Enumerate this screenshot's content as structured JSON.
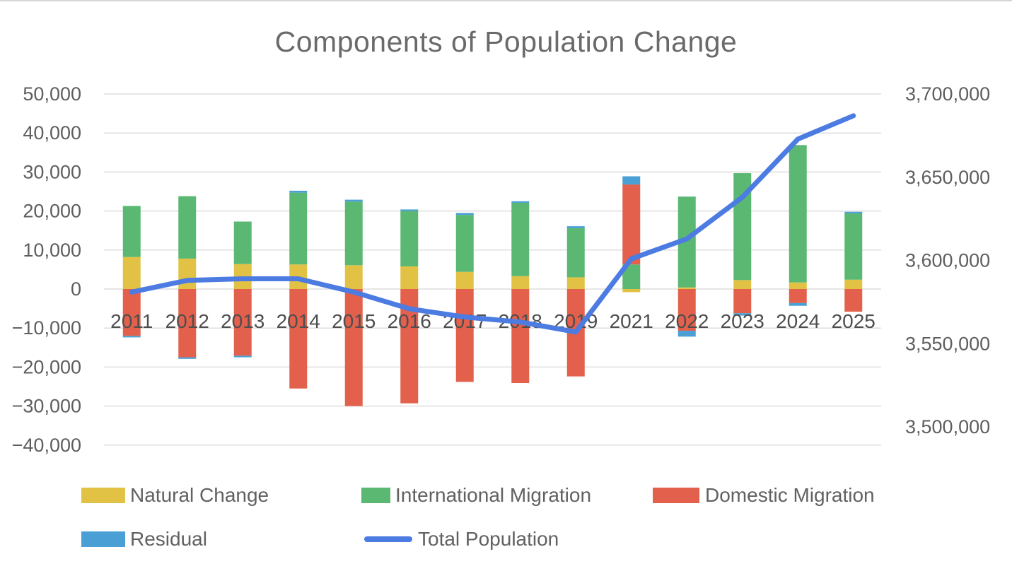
{
  "title": "Components of Population Change",
  "legend": {
    "items": [
      {
        "label": "Natural Change",
        "color": "#E2C244",
        "type": "box"
      },
      {
        "label": "International Migration",
        "color": "#5BB873",
        "type": "box"
      },
      {
        "label": "Domestic Migration",
        "color": "#E2604C",
        "type": "box"
      },
      {
        "label": "Residual",
        "color": "#4AA0D5",
        "type": "box"
      },
      {
        "label": "Total Population",
        "color": "#4C7BE2",
        "type": "line"
      }
    ]
  },
  "chart_data": {
    "type": "combo-stacked-bar-line",
    "title": "Components of Population Change",
    "categories": [
      "2011",
      "2012",
      "2013",
      "2014",
      "2015",
      "2016",
      "2017",
      "2018",
      "2019",
      "2021",
      "2022",
      "2023",
      "2024",
      "2025"
    ],
    "bar_series": [
      {
        "name": "Natural Change",
        "color": "#E2C244",
        "values": [
          8200,
          7800,
          6400,
          6300,
          6100,
          5800,
          4400,
          3300,
          3000,
          -800,
          400,
          2300,
          1700,
          2400
        ]
      },
      {
        "name": "International Migration",
        "color": "#5BB873",
        "values": [
          13100,
          16000,
          10900,
          18400,
          16300,
          14200,
          14600,
          18800,
          12600,
          6300,
          23300,
          27400,
          35200,
          17000
        ]
      },
      {
        "name": "Domestic Migration",
        "color": "#E2604C",
        "values": [
          -12000,
          -17500,
          -17100,
          -25500,
          -30000,
          -29300,
          -23800,
          -24100,
          -22400,
          20500,
          -10700,
          -6200,
          -3600,
          -5800
        ]
      },
      {
        "name": "Residual",
        "color": "#4AA0D5",
        "values": [
          -400,
          -400,
          -400,
          500,
          500,
          400,
          500,
          400,
          500,
          2100,
          -1500,
          -600,
          -700,
          400
        ]
      }
    ],
    "line_series": {
      "name": "Total Population",
      "color": "#4C7BE2",
      "axis": "right",
      "values": [
        3581000,
        3588000,
        3589000,
        3589000,
        3581000,
        3571000,
        3566000,
        3563000,
        3557000,
        3601000,
        3613000,
        3638000,
        3673000,
        3687000
      ]
    },
    "left_axis": {
      "ticks": [
        50000,
        40000,
        30000,
        20000,
        10000,
        0,
        -10000,
        -20000,
        -30000,
        -40000
      ],
      "min": -40000,
      "max": 50000
    },
    "right_axis": {
      "ticks": [
        3700000,
        3650000,
        3600000,
        3550000,
        3500000
      ],
      "min": 3500000,
      "max": 3700000
    },
    "grid": true,
    "legend_position": "bottom"
  }
}
